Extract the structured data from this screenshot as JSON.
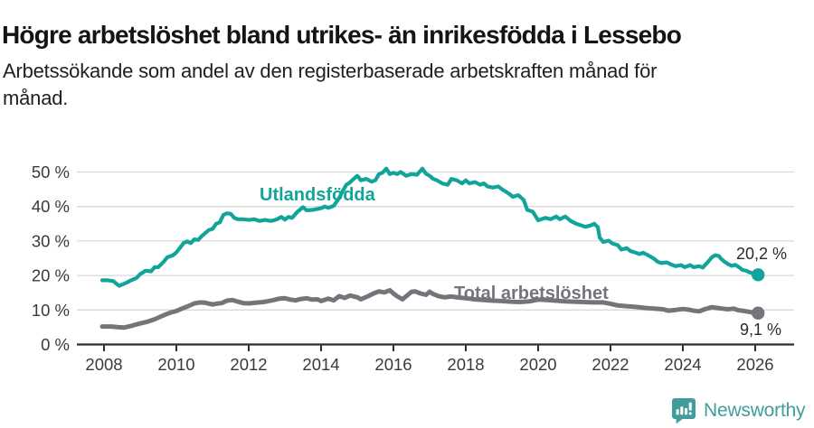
{
  "header": {
    "title": "Högre arbetslöshet bland utrikes- än inrikesfödda i Lessebo",
    "subtitle_line1": "Arbetssökande som andel av den registerbaserade arbetskraften månad för",
    "subtitle_line2": "månad."
  },
  "footer": {
    "brand": "Newsworthy",
    "logo_icon": "speech-bubble-bar-chart",
    "logo_color": "#3f9e9b"
  },
  "colors": {
    "background": "#ffffff",
    "grid": "#d9d9d9",
    "axis": "#2f2f2f",
    "tick_text": "#3a3a3a",
    "title_text": "#141414"
  },
  "chart_data": {
    "type": "line",
    "title": "Högre arbetslöshet bland utrikes- än inrikesfödda i Lessebo",
    "subtitle": "Arbetssökande som andel av den registerbaserade arbetskraften månad för månad.",
    "xlabel": "",
    "ylabel": "",
    "xlim": [
      2007.25,
      2027.1
    ],
    "ylim": [
      0,
      52
    ],
    "grid": "horizontal",
    "legend_position": "inline-labels",
    "x_ticks": [
      2008,
      2010,
      2012,
      2014,
      2016,
      2018,
      2020,
      2022,
      2024,
      2026
    ],
    "x_tick_labels": [
      "2008",
      "2010",
      "2012",
      "2014",
      "2016",
      "2018",
      "2020",
      "2022",
      "2024",
      "2026"
    ],
    "y_ticks": [
      0,
      10,
      20,
      30,
      40,
      50
    ],
    "y_tick_labels": [
      "0 %",
      "10 %",
      "20 %",
      "30 %",
      "40 %",
      "50 %"
    ],
    "series": [
      {
        "name": "Utlandsfödda",
        "color": "#11a59a",
        "line_width": 4.2,
        "end_label": "20,2 %",
        "end_value": 20.2,
        "points": [
          [
            2007.95,
            18.6
          ],
          [
            2008.1,
            18.6
          ],
          [
            2008.25,
            18.4
          ],
          [
            2008.42,
            17.0
          ],
          [
            2008.6,
            17.8
          ],
          [
            2008.75,
            18.6
          ],
          [
            2008.9,
            19.3
          ],
          [
            2009.0,
            20.4
          ],
          [
            2009.15,
            21.4
          ],
          [
            2009.3,
            21.2
          ],
          [
            2009.4,
            22.4
          ],
          [
            2009.5,
            22.4
          ],
          [
            2009.65,
            24.0
          ],
          [
            2009.75,
            25.3
          ],
          [
            2009.9,
            25.8
          ],
          [
            2010.0,
            26.7
          ],
          [
            2010.1,
            28.0
          ],
          [
            2010.2,
            29.4
          ],
          [
            2010.3,
            29.9
          ],
          [
            2010.4,
            29.4
          ],
          [
            2010.5,
            30.5
          ],
          [
            2010.6,
            30.3
          ],
          [
            2010.7,
            31.4
          ],
          [
            2010.8,
            32.3
          ],
          [
            2010.9,
            33.2
          ],
          [
            2011.0,
            33.5
          ],
          [
            2011.1,
            35.0
          ],
          [
            2011.2,
            35.4
          ],
          [
            2011.3,
            37.6
          ],
          [
            2011.4,
            38.0
          ],
          [
            2011.5,
            37.9
          ],
          [
            2011.6,
            36.7
          ],
          [
            2011.7,
            36.3
          ],
          [
            2011.85,
            36.3
          ],
          [
            2012.0,
            36.1
          ],
          [
            2012.15,
            36.3
          ],
          [
            2012.3,
            35.8
          ],
          [
            2012.45,
            36.1
          ],
          [
            2012.6,
            35.8
          ],
          [
            2012.7,
            36.0
          ],
          [
            2012.8,
            36.4
          ],
          [
            2012.9,
            37.0
          ],
          [
            2013.0,
            36.2
          ],
          [
            2013.1,
            37.0
          ],
          [
            2013.2,
            36.7
          ],
          [
            2013.35,
            38.5
          ],
          [
            2013.5,
            39.8
          ],
          [
            2013.6,
            38.9
          ],
          [
            2013.75,
            39.0
          ],
          [
            2013.9,
            39.3
          ],
          [
            2014.0,
            39.5
          ],
          [
            2014.1,
            40.0
          ],
          [
            2014.2,
            39.6
          ],
          [
            2014.35,
            40.2
          ],
          [
            2014.5,
            42.5
          ],
          [
            2014.6,
            44.5
          ],
          [
            2014.7,
            46.3
          ],
          [
            2014.8,
            47.0
          ],
          [
            2014.9,
            48.0
          ],
          [
            2015.0,
            48.9
          ],
          [
            2015.1,
            47.6
          ],
          [
            2015.25,
            48.0
          ],
          [
            2015.4,
            47.2
          ],
          [
            2015.5,
            47.6
          ],
          [
            2015.6,
            49.4
          ],
          [
            2015.7,
            49.8
          ],
          [
            2015.8,
            51.0
          ],
          [
            2015.9,
            49.4
          ],
          [
            2016.0,
            49.8
          ],
          [
            2016.1,
            49.4
          ],
          [
            2016.2,
            50.0
          ],
          [
            2016.35,
            48.9
          ],
          [
            2016.5,
            49.4
          ],
          [
            2016.65,
            49.2
          ],
          [
            2016.8,
            51.0
          ],
          [
            2016.9,
            49.5
          ],
          [
            2017.0,
            48.9
          ],
          [
            2017.1,
            48.0
          ],
          [
            2017.2,
            47.6
          ],
          [
            2017.35,
            46.7
          ],
          [
            2017.5,
            46.3
          ],
          [
            2017.6,
            48.0
          ],
          [
            2017.75,
            47.6
          ],
          [
            2017.9,
            46.7
          ],
          [
            2018.0,
            47.6
          ],
          [
            2018.1,
            46.7
          ],
          [
            2018.25,
            47.1
          ],
          [
            2018.4,
            46.3
          ],
          [
            2018.5,
            46.7
          ],
          [
            2018.6,
            45.8
          ],
          [
            2018.75,
            45.5
          ],
          [
            2018.9,
            45.8
          ],
          [
            2019.0,
            45.0
          ],
          [
            2019.2,
            43.7
          ],
          [
            2019.3,
            42.8
          ],
          [
            2019.45,
            43.3
          ],
          [
            2019.6,
            41.9
          ],
          [
            2019.7,
            39.0
          ],
          [
            2019.85,
            38.5
          ],
          [
            2020.0,
            36.0
          ],
          [
            2020.2,
            36.7
          ],
          [
            2020.35,
            36.3
          ],
          [
            2020.5,
            37.1
          ],
          [
            2020.6,
            36.3
          ],
          [
            2020.75,
            37.1
          ],
          [
            2020.9,
            35.8
          ],
          [
            2021.05,
            35.0
          ],
          [
            2021.2,
            34.5
          ],
          [
            2021.3,
            34.1
          ],
          [
            2021.45,
            34.5
          ],
          [
            2021.55,
            35.0
          ],
          [
            2021.65,
            34.0
          ],
          [
            2021.7,
            31.0
          ],
          [
            2021.8,
            29.7
          ],
          [
            2021.95,
            30.1
          ],
          [
            2022.05,
            29.3
          ],
          [
            2022.2,
            28.8
          ],
          [
            2022.3,
            27.5
          ],
          [
            2022.45,
            27.9
          ],
          [
            2022.55,
            27.1
          ],
          [
            2022.7,
            26.6
          ],
          [
            2022.8,
            26.2
          ],
          [
            2022.9,
            26.6
          ],
          [
            2023.05,
            25.8
          ],
          [
            2023.2,
            24.9
          ],
          [
            2023.3,
            24.0
          ],
          [
            2023.4,
            23.6
          ],
          [
            2023.55,
            23.8
          ],
          [
            2023.7,
            23.1
          ],
          [
            2023.8,
            22.7
          ],
          [
            2023.95,
            23.0
          ],
          [
            2024.05,
            22.4
          ],
          [
            2024.2,
            23.0
          ],
          [
            2024.3,
            22.4
          ],
          [
            2024.45,
            22.7
          ],
          [
            2024.55,
            22.3
          ],
          [
            2024.7,
            24.0
          ],
          [
            2024.8,
            25.3
          ],
          [
            2024.9,
            25.9
          ],
          [
            2025.0,
            25.6
          ],
          [
            2025.05,
            24.9
          ],
          [
            2025.15,
            24.0
          ],
          [
            2025.25,
            23.3
          ],
          [
            2025.35,
            22.8
          ],
          [
            2025.45,
            23.1
          ],
          [
            2025.55,
            22.4
          ],
          [
            2025.65,
            21.6
          ],
          [
            2025.75,
            21.4
          ],
          [
            2025.85,
            20.9
          ],
          [
            2025.95,
            20.6
          ],
          [
            2026.08,
            20.2
          ]
        ]
      },
      {
        "name": "Total arbetslöshet",
        "color": "#76737b",
        "line_width": 5,
        "end_label": "9,1 %",
        "end_value": 9.1,
        "points": [
          [
            2007.95,
            5.2
          ],
          [
            2008.2,
            5.2
          ],
          [
            2008.4,
            5.0
          ],
          [
            2008.55,
            4.9
          ],
          [
            2008.75,
            5.4
          ],
          [
            2009.0,
            6.1
          ],
          [
            2009.2,
            6.6
          ],
          [
            2009.4,
            7.3
          ],
          [
            2009.55,
            8.0
          ],
          [
            2009.7,
            8.7
          ],
          [
            2009.85,
            9.3
          ],
          [
            2010.0,
            9.7
          ],
          [
            2010.15,
            10.4
          ],
          [
            2010.3,
            11.0
          ],
          [
            2010.5,
            11.9
          ],
          [
            2010.65,
            12.2
          ],
          [
            2010.8,
            12.1
          ],
          [
            2011.0,
            11.6
          ],
          [
            2011.1,
            11.8
          ],
          [
            2011.25,
            12.0
          ],
          [
            2011.4,
            12.7
          ],
          [
            2011.55,
            12.9
          ],
          [
            2011.7,
            12.4
          ],
          [
            2011.85,
            12.0
          ],
          [
            2012.0,
            11.9
          ],
          [
            2012.2,
            12.1
          ],
          [
            2012.4,
            12.3
          ],
          [
            2012.55,
            12.6
          ],
          [
            2012.7,
            12.9
          ],
          [
            2012.85,
            13.3
          ],
          [
            2013.0,
            13.4
          ],
          [
            2013.15,
            13.0
          ],
          [
            2013.3,
            12.8
          ],
          [
            2013.45,
            13.2
          ],
          [
            2013.6,
            13.4
          ],
          [
            2013.75,
            13.0
          ],
          [
            2013.9,
            13.1
          ],
          [
            2014.0,
            12.6
          ],
          [
            2014.2,
            13.3
          ],
          [
            2014.35,
            12.8
          ],
          [
            2014.5,
            14.0
          ],
          [
            2014.65,
            13.5
          ],
          [
            2014.8,
            14.2
          ],
          [
            2015.0,
            13.7
          ],
          [
            2015.1,
            13.1
          ],
          [
            2015.3,
            14.0
          ],
          [
            2015.45,
            14.8
          ],
          [
            2015.6,
            15.4
          ],
          [
            2015.75,
            15.1
          ],
          [
            2015.9,
            15.7
          ],
          [
            2016.0,
            14.8
          ],
          [
            2016.1,
            14.0
          ],
          [
            2016.25,
            13.1
          ],
          [
            2016.4,
            14.4
          ],
          [
            2016.5,
            15.3
          ],
          [
            2016.6,
            15.4
          ],
          [
            2016.75,
            14.8
          ],
          [
            2016.9,
            14.4
          ],
          [
            2017.0,
            15.3
          ],
          [
            2017.1,
            14.6
          ],
          [
            2017.25,
            14.0
          ],
          [
            2017.4,
            13.7
          ],
          [
            2017.6,
            13.9
          ],
          [
            2017.8,
            13.6
          ],
          [
            2018.0,
            13.4
          ],
          [
            2018.25,
            13.1
          ],
          [
            2018.5,
            12.9
          ],
          [
            2018.75,
            12.7
          ],
          [
            2019.0,
            12.6
          ],
          [
            2019.25,
            12.4
          ],
          [
            2019.5,
            12.3
          ],
          [
            2019.75,
            12.5
          ],
          [
            2020.0,
            13.0
          ],
          [
            2020.25,
            12.9
          ],
          [
            2020.5,
            12.7
          ],
          [
            2020.75,
            12.5
          ],
          [
            2021.0,
            12.4
          ],
          [
            2021.25,
            12.3
          ],
          [
            2021.5,
            12.2
          ],
          [
            2021.8,
            12.2
          ],
          [
            2022.0,
            11.8
          ],
          [
            2022.2,
            11.3
          ],
          [
            2022.45,
            11.1
          ],
          [
            2022.7,
            10.9
          ],
          [
            2022.95,
            10.6
          ],
          [
            2023.2,
            10.4
          ],
          [
            2023.45,
            10.2
          ],
          [
            2023.6,
            9.8
          ],
          [
            2023.8,
            10.0
          ],
          [
            2024.0,
            10.3
          ],
          [
            2024.15,
            10.1
          ],
          [
            2024.3,
            9.8
          ],
          [
            2024.45,
            9.6
          ],
          [
            2024.6,
            10.2
          ],
          [
            2024.8,
            10.8
          ],
          [
            2024.95,
            10.6
          ],
          [
            2025.1,
            10.4
          ],
          [
            2025.25,
            10.2
          ],
          [
            2025.4,
            10.4
          ],
          [
            2025.55,
            9.9
          ],
          [
            2025.7,
            9.7
          ],
          [
            2025.85,
            9.4
          ],
          [
            2026.08,
            9.1
          ]
        ]
      }
    ]
  }
}
